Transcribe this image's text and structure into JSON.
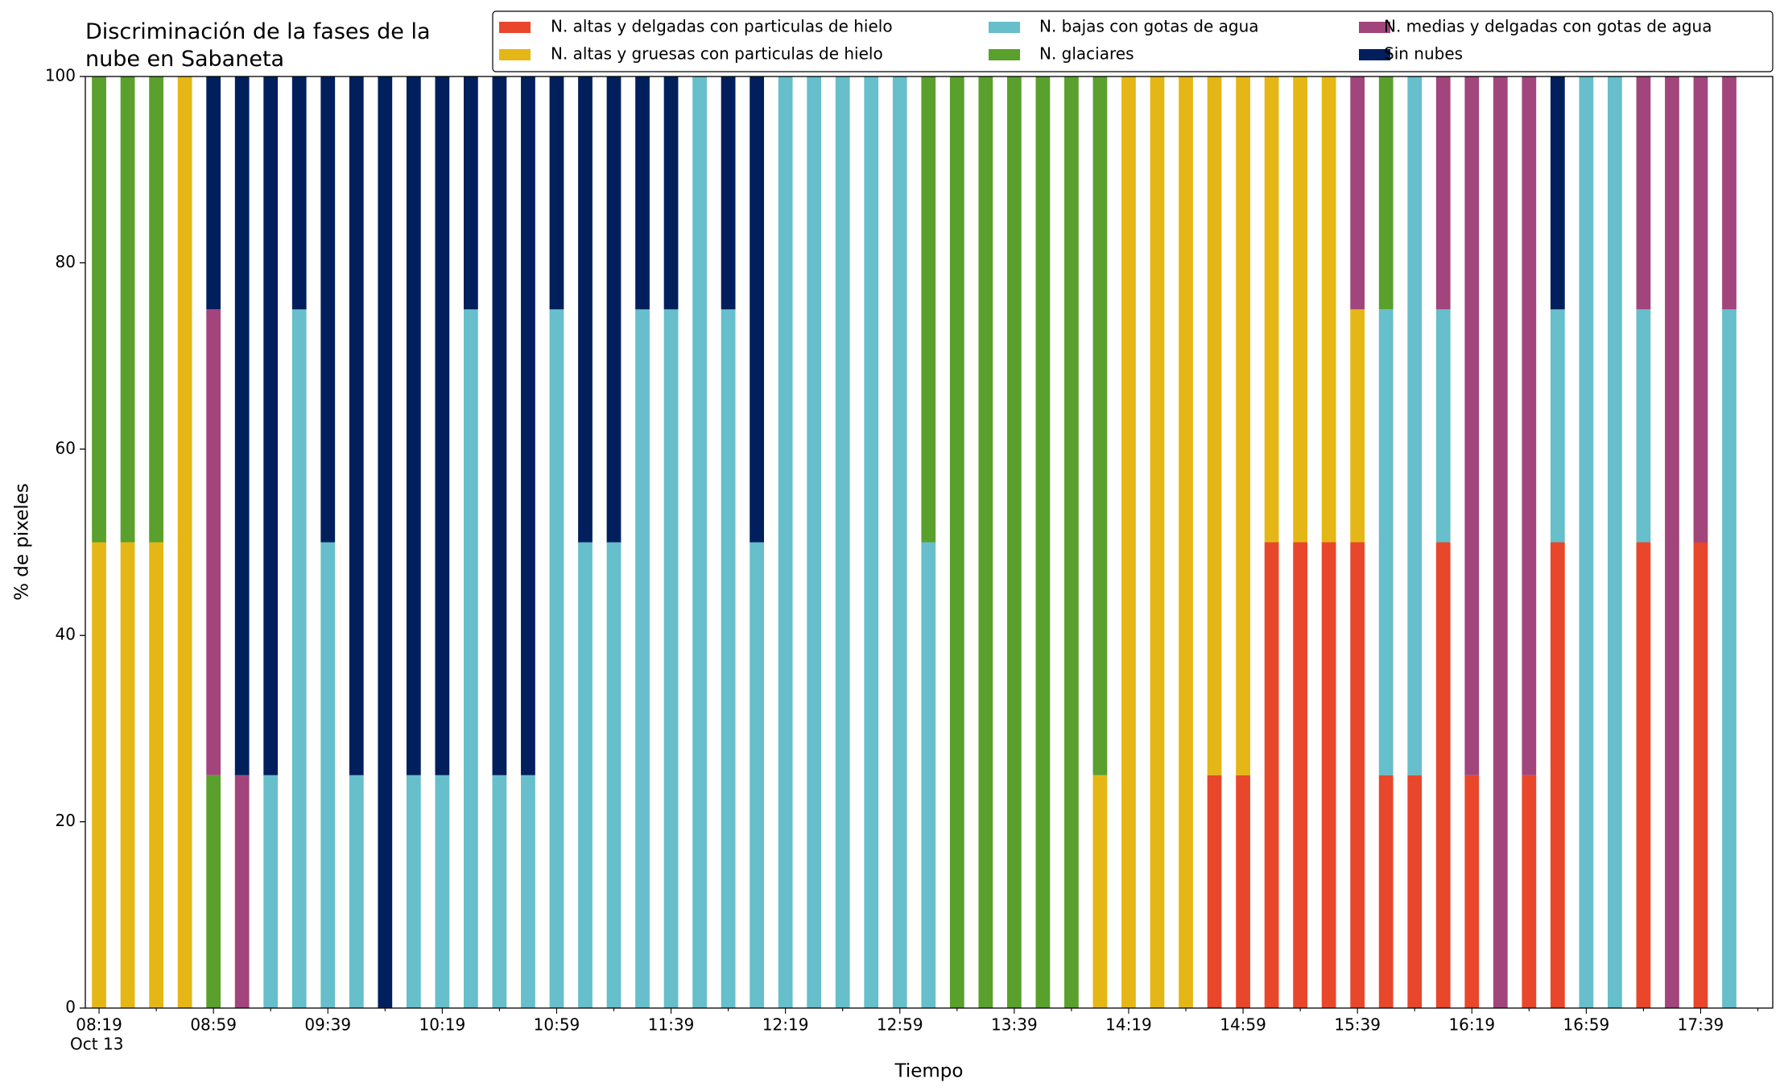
{
  "chart_data": {
    "type": "stacked_bar",
    "title": "Discriminación de la fases de la\nnube en Sabaneta",
    "xlabel": "Tiempo",
    "ylabel": "% de pixeles",
    "x_sublabel": "Oct 13",
    "categories": [
      "08:19",
      null,
      null,
      null,
      "08:59",
      null,
      null,
      null,
      "09:39",
      null,
      null,
      null,
      "10:19",
      null,
      null,
      null,
      "10:59",
      null,
      null,
      null,
      "11:39",
      null,
      null,
      null,
      "12:19",
      null,
      null,
      null,
      "12:59",
      null,
      null,
      null,
      "13:39",
      null,
      null,
      null,
      "14:19",
      null,
      null,
      null,
      "14:59",
      null,
      null,
      null,
      "15:39",
      null,
      null,
      null,
      "16:19",
      null,
      null,
      null,
      "16:59",
      null,
      null,
      null,
      "17:39",
      null
    ],
    "ylim": [
      0,
      100
    ],
    "yticks": [
      0,
      20,
      40,
      60,
      80,
      100
    ],
    "grid": false,
    "legend": "upper right",
    "series": [
      {
        "name": "N. altas y delgadas con particulas de hielo",
        "color": "#e8472b",
        "values": [
          0,
          0,
          0,
          0,
          0,
          0,
          0,
          0,
          0,
          0,
          0,
          0,
          0,
          0,
          0,
          0,
          0,
          0,
          0,
          0,
          0,
          0,
          0,
          0,
          0,
          0,
          0,
          0,
          0,
          0,
          0,
          0,
          0,
          0,
          0,
          0,
          0,
          0,
          0,
          25,
          25,
          50,
          50,
          50,
          50,
          25,
          25,
          50,
          25,
          0,
          25,
          50,
          0,
          0,
          50,
          0,
          50,
          0
        ]
      },
      {
        "name": "N. altas y gruesas con particulas de hielo",
        "color": "#e5b716",
        "values": [
          50,
          50,
          50,
          100,
          0,
          0,
          0,
          0,
          0,
          0,
          0,
          0,
          0,
          0,
          0,
          0,
          0,
          0,
          0,
          0,
          0,
          0,
          0,
          0,
          0,
          0,
          0,
          0,
          0,
          0,
          0,
          0,
          0,
          0,
          0,
          25,
          100,
          100,
          100,
          75,
          75,
          50,
          50,
          50,
          25,
          0,
          0,
          0,
          0,
          0,
          0,
          0,
          0,
          0,
          0,
          0,
          0,
          0
        ]
      },
      {
        "name": "N. bajas con gotas de agua",
        "color": "#66bfca",
        "values": [
          0,
          0,
          0,
          0,
          0,
          0,
          25,
          75,
          50,
          25,
          0,
          25,
          25,
          75,
          25,
          25,
          75,
          50,
          50,
          75,
          75,
          100,
          75,
          50,
          100,
          100,
          100,
          100,
          100,
          50,
          0,
          0,
          0,
          0,
          0,
          0,
          0,
          0,
          0,
          0,
          0,
          0,
          0,
          0,
          0,
          50,
          75,
          25,
          0,
          0,
          0,
          25,
          100,
          100,
          25,
          0,
          0,
          75
        ]
      },
      {
        "name": "N. glaciares",
        "color": "#5aa02c",
        "values": [
          50,
          50,
          50,
          0,
          25,
          0,
          0,
          0,
          0,
          0,
          0,
          0,
          0,
          0,
          0,
          0,
          0,
          0,
          0,
          0,
          0,
          0,
          0,
          0,
          0,
          0,
          0,
          0,
          0,
          50,
          100,
          100,
          100,
          100,
          100,
          75,
          0,
          0,
          0,
          0,
          0,
          0,
          0,
          0,
          0,
          25,
          0,
          0,
          0,
          0,
          0,
          0,
          0,
          0,
          0,
          0,
          0,
          0
        ]
      },
      {
        "name": "N. medias y delgadas con gotas de agua",
        "color": "#a2457c",
        "values": [
          0,
          0,
          0,
          0,
          50,
          25,
          0,
          0,
          0,
          0,
          0,
          0,
          0,
          0,
          0,
          0,
          0,
          0,
          0,
          0,
          0,
          0,
          0,
          0,
          0,
          0,
          0,
          0,
          0,
          0,
          0,
          0,
          0,
          0,
          0,
          0,
          0,
          0,
          0,
          0,
          0,
          0,
          0,
          0,
          25,
          0,
          0,
          25,
          75,
          100,
          75,
          0,
          0,
          0,
          25,
          100,
          50,
          25
        ]
      },
      {
        "name": "Sin nubes",
        "color": "#001f5c",
        "values": [
          0,
          0,
          0,
          0,
          25,
          75,
          75,
          25,
          50,
          75,
          100,
          75,
          75,
          25,
          75,
          75,
          25,
          50,
          50,
          25,
          25,
          0,
          25,
          50,
          0,
          0,
          0,
          0,
          0,
          0,
          0,
          0,
          0,
          0,
          0,
          0,
          0,
          0,
          0,
          0,
          0,
          0,
          0,
          0,
          0,
          0,
          0,
          0,
          0,
          0,
          0,
          25,
          0,
          0,
          0,
          0,
          0,
          0
        ]
      }
    ]
  }
}
